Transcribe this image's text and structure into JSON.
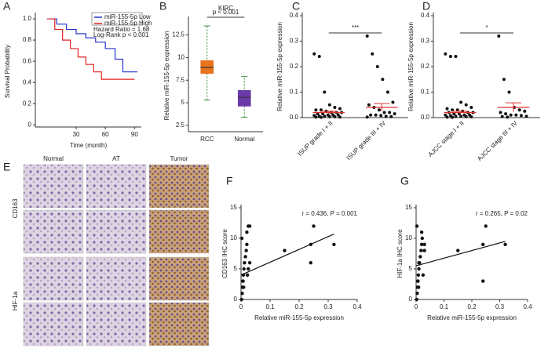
{
  "chart_data": [
    {
      "type": "line",
      "label": "A",
      "ylabel": "Survival Probability",
      "xlabel": "Time (month)",
      "xlim": [
        -12,
        97
      ],
      "xticks": [
        30,
        60,
        90
      ],
      "ylim": [
        -0.02,
        1.03
      ],
      "yticks": [
        0,
        0.2,
        0.4,
        0.6,
        0.8,
        {
          "value": 1,
          "label": "1.0"
        }
      ],
      "legend": "upper right",
      "annotations": [
        "Hazard Ratio = 1.68",
        "Log-Rank p < 0.001"
      ],
      "series": [
        {
          "name": "miR-155-5p Low",
          "color": "#2233cc",
          "x": [
            0,
            10,
            10,
            20,
            20,
            30,
            30,
            40,
            40,
            50,
            50,
            60,
            60,
            70,
            70,
            78,
            78,
            93
          ],
          "values": [
            1,
            1,
            0.95,
            0.95,
            0.9,
            0.9,
            0.86,
            0.86,
            0.82,
            0.82,
            0.78,
            0.78,
            0.72,
            0.72,
            0.62,
            0.62,
            0.5,
            0.5
          ]
        },
        {
          "name": "miR-155-5p High",
          "color": "#e02020",
          "x": [
            0,
            8,
            8,
            16,
            16,
            24,
            24,
            32,
            32,
            40,
            40,
            48,
            48,
            56,
            56,
            90
          ],
          "values": [
            1,
            1,
            0.9,
            0.9,
            0.8,
            0.8,
            0.72,
            0.72,
            0.64,
            0.64,
            0.57,
            0.57,
            0.5,
            0.5,
            0.43,
            0.43
          ]
        }
      ]
    },
    {
      "type": "box",
      "label": "B",
      "title": "KIRC",
      "ylabel": "Relative miR-155-5p expression",
      "categories": [
        "RCC",
        "Normal"
      ],
      "ylim": [
        1.8,
        14.2
      ],
      "yticks": [
        2.5,
        5,
        7.5,
        10,
        12.5
      ],
      "annotation": "p < 0.001",
      "boxes": [
        {
          "color": "#e8731c",
          "whislo": 5.3,
          "q1": 8.2,
          "med": 8.9,
          "q3": 9.7,
          "whishi": 13.5
        },
        {
          "color": "#6a3aa8",
          "whislo": 3.4,
          "q1": 4.6,
          "med": 5.6,
          "q3": 6.4,
          "whishi": 7.9
        }
      ]
    },
    {
      "type": "strip",
      "label": "C",
      "ylabel": "Relative miR-155-5p expression",
      "categories": [
        "ISUP grade I + II",
        "ISUP grade III + IV"
      ],
      "ylim": [
        0,
        0.4
      ],
      "yticks": [
        {
          "value": 0,
          "label": "0.0"
        },
        0.1,
        0.2,
        0.3,
        0.4
      ],
      "annotation": "***",
      "groups": [
        {
          "values": [
            0.25,
            0.24,
            0.1,
            0.05,
            0.04,
            0.035,
            0.03,
            0.03,
            0.025,
            0.02,
            0.02,
            0.02,
            0.015,
            0.015,
            0.01,
            0.01,
            0.01,
            0.008,
            0.005,
            0.005,
            0.004,
            0.003,
            0.002,
            0.002,
            0.001
          ],
          "mean": 0.02,
          "sem": 0.005
        },
        {
          "values": [
            0.32,
            0.25,
            0.2,
            0.15,
            0.1,
            0.06,
            0.05,
            0.04,
            0.03,
            0.02,
            0.02,
            0.015,
            0.01,
            0.01,
            0.008,
            0.005,
            0.004,
            0.002
          ],
          "mean": 0.04,
          "sem": 0.015
        }
      ]
    },
    {
      "type": "strip",
      "label": "D",
      "ylabel": "Relative miR-155-5p expression",
      "categories": [
        "AJCC stage I + II",
        "AJCC stage III + IV"
      ],
      "ylim": [
        0,
        0.4
      ],
      "yticks": [
        {
          "value": 0,
          "label": "0.0"
        },
        0.1,
        0.2,
        0.3,
        0.4
      ],
      "annotation": "*",
      "groups": [
        {
          "values": [
            0.25,
            0.24,
            0.24,
            0.06,
            0.05,
            0.04,
            0.035,
            0.03,
            0.03,
            0.025,
            0.02,
            0.02,
            0.02,
            0.015,
            0.015,
            0.01,
            0.01,
            0.01,
            0.008,
            0.005,
            0.005,
            0.004,
            0.003,
            0.002,
            0.001
          ],
          "mean": 0.02,
          "sem": 0.005
        },
        {
          "values": [
            0.32,
            0.15,
            0.1,
            0.04,
            0.03,
            0.025,
            0.02,
            0.015,
            0.01,
            0.01,
            0.008,
            0.005,
            0.004,
            0.002
          ],
          "mean": 0.04,
          "sem": 0.018
        }
      ]
    },
    {
      "type": "scatter",
      "label": "F",
      "ylabel": "CD163  IHC score",
      "xlabel": "Relative miR-155-5p expression",
      "annotation": "r = 0.436, P = 0.001",
      "xlim": [
        0,
        0.4
      ],
      "xticks": [
        0,
        0.1,
        0.2,
        0.3,
        0.4
      ],
      "ylim": [
        0,
        15
      ],
      "yticks": [
        0,
        5,
        10,
        15
      ],
      "x": [
        0.002,
        0.004,
        0.005,
        0.006,
        0.008,
        0.01,
        0.012,
        0.015,
        0.018,
        0.02,
        0.022,
        0.025,
        0.03,
        0.003,
        0.007,
        0.009,
        0.02,
        0.03,
        0.025,
        0.15,
        0.24,
        0.24,
        0.25,
        0.32
      ],
      "values": [
        0,
        1,
        2,
        3,
        4,
        5,
        6,
        7,
        8,
        9,
        4,
        5,
        6,
        10,
        3,
        2,
        11,
        12,
        12,
        8,
        6,
        9,
        12,
        9
      ],
      "fit": {
        "x": [
          0,
          0.32
        ],
        "values": [
          4,
          10.7
        ]
      }
    },
    {
      "type": "scatter",
      "label": "G",
      "ylabel": "HIF-1a  IHC score",
      "xlabel": "Relative miR-155-5p expression",
      "annotation": "r = 0.265, P = 0.02",
      "xlim": [
        0,
        0.4
      ],
      "xticks": [
        0,
        0.1,
        0.2,
        0.3,
        0.4
      ],
      "ylim": [
        0,
        15
      ],
      "yticks": [
        0,
        5,
        10,
        15
      ],
      "x": [
        0.002,
        0.004,
        0.005,
        0.006,
        0.008,
        0.01,
        0.012,
        0.015,
        0.018,
        0.02,
        0.022,
        0.025,
        0.03,
        0.003,
        0.007,
        0.009,
        0.02,
        0.03,
        0.01,
        0.15,
        0.24,
        0.24,
        0.25,
        0.32
      ],
      "values": [
        0,
        1,
        2,
        3,
        4,
        5,
        6,
        7,
        8,
        9,
        10,
        4,
        8,
        12,
        3,
        2,
        11,
        9,
        6,
        8,
        3,
        9,
        12,
        9
      ],
      "fit": {
        "x": [
          0,
          0.32
        ],
        "values": [
          5.5,
          9.5
        ]
      }
    }
  ],
  "image_panel": {
    "label": "E",
    "columns": [
      "Normal",
      "AT",
      "Tumor"
    ],
    "rows": [
      "CD163",
      "HIF-1a"
    ]
  }
}
